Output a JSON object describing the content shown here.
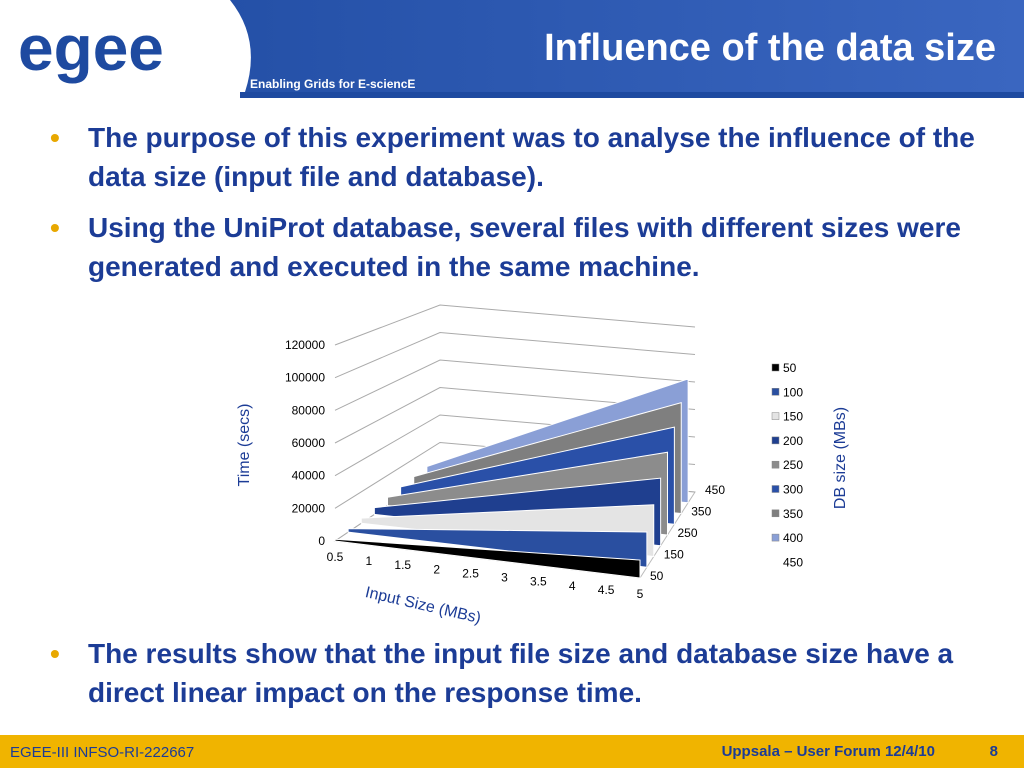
{
  "header": {
    "logo": "egee",
    "tagline": "Enabling Grids for E-sciencE",
    "title": "Influence of the data size"
  },
  "bullets": [
    "The purpose of this experiment was to analyse the influence of the data size (input file and database).",
    "Using the UniProt database, several files with different sizes were generated and executed in the same machine.",
    "The results show that the input file size and database size have a direct linear impact on the response time."
  ],
  "chart_data": {
    "type": "area3d",
    "x_label": "Input Size (MBs)",
    "y_label": "Time (secs)",
    "z_label": "DB size (MBs)",
    "x": [
      0.5,
      1,
      1.5,
      2,
      2.5,
      3,
      3.5,
      4,
      4.5,
      5
    ],
    "ylim": [
      0,
      120000
    ],
    "yticks": [
      0,
      20000,
      40000,
      60000,
      80000,
      100000,
      120000
    ],
    "grid": true,
    "series": [
      {
        "name": "50",
        "color": "#000000",
        "values": [
          1100,
          2200,
          3300,
          4400,
          5500,
          6600,
          7700,
          8800,
          9900,
          11000
        ]
      },
      {
        "name": "100",
        "color": "#2a4fa0",
        "values": [
          2200,
          4400,
          6600,
          8800,
          11000,
          13200,
          15400,
          17600,
          19800,
          22000
        ]
      },
      {
        "name": "150",
        "color": "#e4e4e4",
        "values": [
          3300,
          6600,
          9900,
          13200,
          16500,
          19800,
          23100,
          26400,
          29700,
          33000
        ]
      },
      {
        "name": "200",
        "color": "#1f3f8f",
        "values": [
          4400,
          8800,
          13200,
          17600,
          22000,
          26400,
          30800,
          35200,
          39600,
          44000
        ]
      },
      {
        "name": "250",
        "color": "#8c8c8c",
        "values": [
          5500,
          11000,
          16500,
          22000,
          27500,
          33000,
          38500,
          44000,
          49500,
          55000
        ]
      },
      {
        "name": "300",
        "color": "#2a50a8",
        "values": [
          6600,
          13200,
          19800,
          26400,
          33000,
          39600,
          46200,
          52800,
          59400,
          66000
        ]
      },
      {
        "name": "350",
        "color": "#7f7f7f",
        "values": [
          7700,
          15400,
          23100,
          30800,
          38500,
          46200,
          53900,
          61600,
          69300,
          77000
        ]
      },
      {
        "name": "400",
        "color": "#8a9fd6",
        "values": [
          8800,
          17600,
          26400,
          35200,
          44000,
          52800,
          61600,
          70400,
          79200,
          88000
        ]
      },
      {
        "name": "450",
        "color": null,
        "values": [
          null,
          null,
          null,
          null,
          null,
          null,
          null,
          null,
          null,
          null
        ]
      }
    ]
  },
  "footer": {
    "left": "EGEE-III INFSO-RI-222667",
    "center": "Uppsala – User Forum 12/4/10",
    "page": "8"
  }
}
